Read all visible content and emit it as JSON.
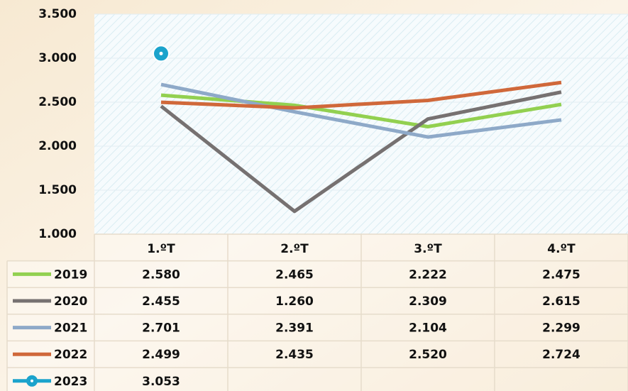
{
  "chart_data": {
    "type": "line",
    "categories": [
      "1.ºT",
      "2.ºT",
      "3.ºT",
      "4.ºT"
    ],
    "series": [
      {
        "name": "2019",
        "color": "#92d050",
        "values": [
          2580,
          2465,
          2222,
          2475
        ],
        "value_labels": [
          "2.580",
          "2.465",
          "2.222",
          "2.475"
        ]
      },
      {
        "name": "2020",
        "color": "#767171",
        "values": [
          2455,
          1260,
          2309,
          2615
        ],
        "value_labels": [
          "2.455",
          "1.260",
          "2.309",
          "2.615"
        ]
      },
      {
        "name": "2021",
        "color": "#8ea9c8",
        "values": [
          2701,
          2391,
          2104,
          2299
        ],
        "value_labels": [
          "2.701",
          "2.391",
          "2.104",
          "2.299"
        ]
      },
      {
        "name": "2022",
        "color": "#d0683a",
        "values": [
          2499,
          2435,
          2520,
          2724
        ],
        "value_labels": [
          "2.499",
          "2.435",
          "2.520",
          "2.724"
        ]
      },
      {
        "name": "2023",
        "color": "#1ba3cc",
        "marker": "circle",
        "values": [
          3053,
          null,
          null,
          null
        ],
        "value_labels": [
          "3.053",
          null,
          null,
          null
        ]
      }
    ],
    "ylim": [
      1000,
      3500
    ],
    "yticks": [
      {
        "value": 1000,
        "label": "1.000"
      },
      {
        "value": 1500,
        "label": "1.500"
      },
      {
        "value": 2000,
        "label": "2.000"
      },
      {
        "value": 2500,
        "label": "2.500"
      },
      {
        "value": 3000,
        "label": "3.000"
      },
      {
        "value": 3500,
        "label": "3.500"
      }
    ],
    "grid": true
  }
}
